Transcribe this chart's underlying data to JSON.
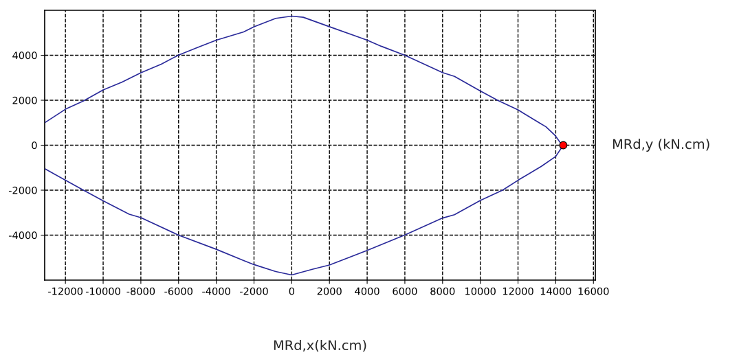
{
  "chart_data": {
    "type": "line",
    "xlabel": "MRd,x(kN.cm)",
    "ylabel": "MRd,y (kN.cm)",
    "xlim": [
      -13100,
      16100
    ],
    "ylim": [
      -6000,
      6000
    ],
    "xticks": [
      -12000,
      -10000,
      -8000,
      -6000,
      -4000,
      -2000,
      0,
      2000,
      4000,
      6000,
      8000,
      10000,
      12000,
      14000,
      16000
    ],
    "yticks": [
      -4000,
      -2000,
      0,
      2000,
      4000
    ],
    "grid": true,
    "series": [
      {
        "color": "#2a2a9a",
        "marker": "none",
        "x": [
          -13060,
          -12000,
          -11060,
          -10000,
          -8990,
          -8000,
          -6920,
          -6000,
          -4980,
          -4000,
          -2550,
          -2000,
          -850,
          0,
          610,
          2000,
          4000,
          4750,
          6000,
          8000,
          8630,
          10000,
          10930,
          12000,
          13120,
          13480,
          13970,
          14270,
          14400,
          14000,
          13240,
          12000,
          11180,
          10000,
          8630,
          8000,
          6000,
          4000,
          2000,
          1090,
          0,
          -850,
          -2000,
          -2550,
          -4000,
          -6000,
          -8000,
          -8620,
          -10000,
          -11060,
          -12000,
          -13060
        ],
        "values": [
          1020,
          1600,
          1960,
          2460,
          2810,
          3220,
          3600,
          4010,
          4350,
          4670,
          5040,
          5270,
          5640,
          5740,
          5690,
          5270,
          4670,
          4400,
          4000,
          3230,
          3060,
          2410,
          1990,
          1570,
          1000,
          820,
          430,
          80,
          0,
          -500,
          -940,
          -1560,
          -2000,
          -2460,
          -3090,
          -3240,
          -3990,
          -4680,
          -5330,
          -5520,
          -5770,
          -5620,
          -5310,
          -5130,
          -4630,
          -4000,
          -3220,
          -3070,
          -2470,
          -1990,
          -1560,
          -1060
        ]
      },
      {
        "type": "scatter",
        "color": "#ff0000",
        "marker": "circle",
        "x": [
          14400
        ],
        "values": [
          0
        ]
      }
    ]
  }
}
